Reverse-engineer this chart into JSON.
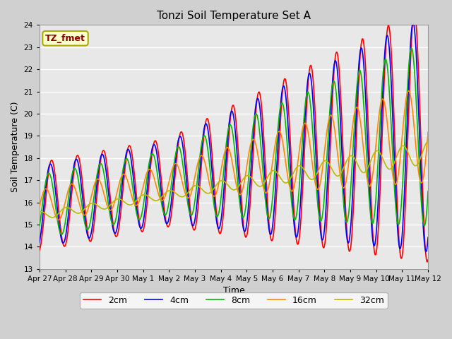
{
  "title": "Tonzi Soil Temperature Set A",
  "xlabel": "Time",
  "ylabel": "Soil Temperature (C)",
  "ylim": [
    13.0,
    24.0
  ],
  "yticks": [
    13.0,
    14.0,
    15.0,
    16.0,
    17.0,
    18.0,
    19.0,
    20.0,
    21.0,
    22.0,
    23.0,
    24.0
  ],
  "xtick_labels": [
    "Apr 27",
    "Apr 28",
    "Apr 29",
    "Apr 30",
    "May 1",
    "May 2",
    "May 3",
    "May 4",
    "May 5",
    "May 6",
    "May 7",
    "May 8",
    "May 9",
    "May 10",
    "May 11",
    "May 12"
  ],
  "legend_labels": [
    "2cm",
    "4cm",
    "8cm",
    "16cm",
    "32cm"
  ],
  "line_colors": [
    "#ff0000",
    "#0000ff",
    "#00bb00",
    "#ff8800",
    "#bbbb00"
  ],
  "line_widths": [
    1.2,
    1.2,
    1.2,
    1.2,
    1.2
  ],
  "annotation_text": "TZ_fmet",
  "annotation_color": "#880000",
  "annotation_bg": "#ffffcc",
  "annotation_border": "#aaaa00",
  "fig_bg": "#d0d0d0",
  "plot_bg": "#e8e8e8",
  "grid_color": "#ffffff",
  "figsize": [
    6.4,
    4.8
  ],
  "dpi": 100
}
